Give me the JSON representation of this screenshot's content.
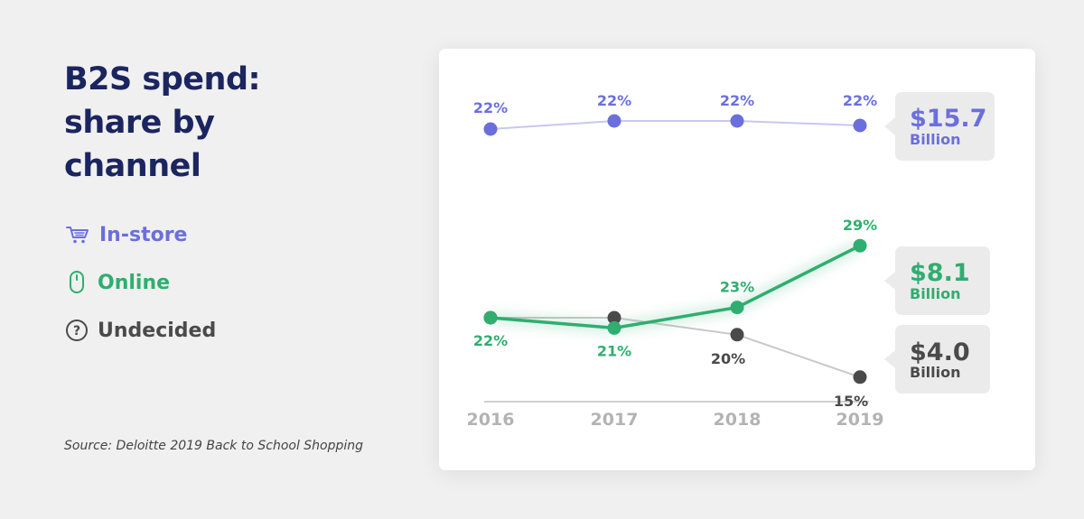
{
  "title": {
    "line1": "B2S spend:",
    "line2": "share by",
    "line3": "channel"
  },
  "legend": [
    {
      "label": "In-store",
      "icon": "cart-icon",
      "color": "#6b6fdc"
    },
    {
      "label": "Online",
      "icon": "mouse-icon",
      "color": "#2fae6f"
    },
    {
      "label": "Undecided",
      "icon": "question-icon",
      "color": "#4a4a4a"
    }
  ],
  "source": "Source: Deloitte 2019 Back to School Shopping",
  "chart_data": {
    "type": "line",
    "x": [
      "2016",
      "2017",
      "2018",
      "2019"
    ],
    "series": [
      {
        "name": "In-store",
        "color": "#6b6fdc",
        "line_color": "#c7c8f0",
        "values": [
          22,
          22,
          22,
          22
        ],
        "labels": [
          "22%",
          "22%",
          "22%",
          "22%"
        ],
        "callout_value": "$15.7",
        "callout_unit": "Billion"
      },
      {
        "name": "Online",
        "color": "#2fae6f",
        "line_color": "#2fae6f",
        "values": [
          22,
          21,
          23,
          29
        ],
        "labels": [
          "22%",
          "21%",
          "23%",
          "29%"
        ],
        "callout_value": "$8.1",
        "callout_unit": "Billion"
      },
      {
        "name": "Undecided",
        "color": "#4a4a4a",
        "line_color": "#c8c8c8",
        "values": [
          22,
          22,
          20,
          15
        ],
        "labels": [
          "",
          "",
          "20%",
          "15%"
        ],
        "callout_value": "$4.0",
        "callout_unit": "Billion"
      }
    ],
    "grid": false,
    "legend_position": "left"
  }
}
